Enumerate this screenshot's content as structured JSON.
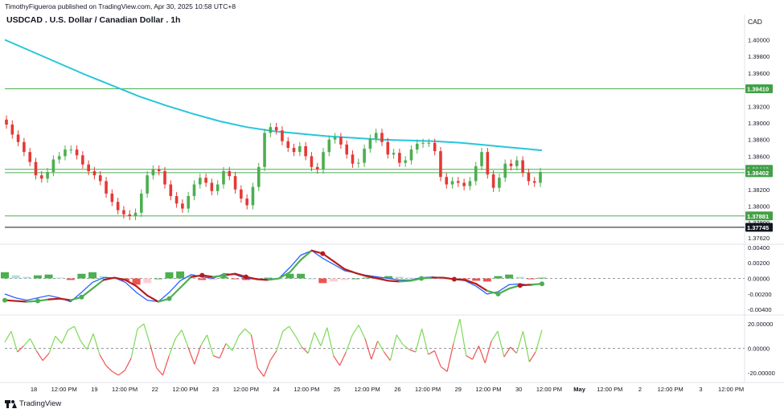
{
  "header": {
    "publisher_line": "TimothyFigueroa published on TradingView.com, Apr 30, 2025 10:58 UTC+8",
    "title": "USDCAD . U.S. Dollar / Canadian Dollar . 1h",
    "currency": "CAD"
  },
  "footer": {
    "brand": "TradingView"
  },
  "colors": {
    "up": "#26a69a",
    "down": "#ef5350",
    "candle_up": "#4caf50",
    "candle_down": "#e53935",
    "ma": "#26c6da",
    "hline": "#4caf50",
    "macd_line": "#2962ff",
    "signal_line": "#b71c1c",
    "signal_up": "#4caf50",
    "hist_pos": "#4caf50",
    "hist_pos_light": "#b2dfdb",
    "hist_neg": "#ef5350",
    "hist_neg_light": "#ffcdd2",
    "osc_up": "#7ed957",
    "osc_down": "#ef5350"
  },
  "chart_data": [
    {
      "name_text": "USDCAD . U.S. Dollar / Canadian Dollar . 1h",
      "type": "candlestick",
      "ylim": [
        1.3755,
        1.4015
      ],
      "y_ticks": [
        "1.40000",
        "1.39800",
        "1.39600",
        "1.39410",
        "1.39200",
        "1.39000",
        "1.38800",
        "1.38600",
        "1.38442",
        "1.38402",
        "1.38200",
        "1.38000",
        "1.37881",
        "1.37800",
        "1.37745",
        "1.37620"
      ],
      "price_labels": [
        {
          "value": 1.3941,
          "text": "1.39410",
          "kind": "green"
        },
        {
          "value": 1.38442,
          "text": "1.38442",
          "kind": "green"
        },
        {
          "value": 1.38402,
          "text": "1.38402",
          "kind": "green"
        },
        {
          "value": 1.37881,
          "text": "1.37881",
          "kind": "green"
        },
        {
          "value": 1.37745,
          "text": "1.37745",
          "kind": "black"
        }
      ],
      "horizontal_lines": [
        {
          "value": 1.3941,
          "color": "green"
        },
        {
          "value": 1.38442,
          "color": "green"
        },
        {
          "value": 1.38402,
          "color": "green"
        },
        {
          "value": 1.37881,
          "color": "green"
        },
        {
          "value": 1.37745,
          "color": "black"
        }
      ],
      "moving_average": [
        1.4,
        1.3986,
        1.3972,
        1.3958,
        1.3945,
        1.3932,
        1.3921,
        1.3911,
        1.3902,
        1.3895,
        1.389,
        1.3887,
        1.3884,
        1.3882,
        1.388,
        1.3879,
        1.3878,
        1.3876,
        1.3873,
        1.387,
        1.3867
      ],
      "close": [
        1.3898,
        1.3886,
        1.3877,
        1.3865,
        1.3853,
        1.3837,
        1.3833,
        1.3841,
        1.3856,
        1.386,
        1.3868,
        1.3868,
        1.3861,
        1.385,
        1.3842,
        1.3837,
        1.383,
        1.3815,
        1.3805,
        1.3795,
        1.379,
        1.3788,
        1.3792,
        1.3815,
        1.3837,
        1.3844,
        1.3842,
        1.3826,
        1.3812,
        1.3803,
        1.3797,
        1.3812,
        1.3826,
        1.3834,
        1.3828,
        1.3818,
        1.3826,
        1.3842,
        1.3836,
        1.382,
        1.3809,
        1.3801,
        1.3823,
        1.3847,
        1.3888,
        1.3895,
        1.3891,
        1.3878,
        1.387,
        1.3865,
        1.3872,
        1.386,
        1.3847,
        1.3844,
        1.3865,
        1.388,
        1.3883,
        1.3874,
        1.3862,
        1.3851,
        1.3852,
        1.3869,
        1.3881,
        1.3888,
        1.3877,
        1.3862,
        1.3864,
        1.3852,
        1.3855,
        1.3868,
        1.3875,
        1.3876,
        1.3876,
        1.3866,
        1.3835,
        1.3826,
        1.383,
        1.3828,
        1.3824,
        1.383,
        1.3848,
        1.3865,
        1.3838,
        1.3822,
        1.3834,
        1.3851,
        1.3848,
        1.3855,
        1.384,
        1.383,
        1.3828,
        1.3841
      ]
    },
    {
      "type": "line+histogram",
      "ylim": [
        -0.0045,
        0.0043
      ],
      "y_ticks": [
        "0.00400",
        "0.00200",
        "0.00000",
        "-0.00200",
        "-0.00400"
      ],
      "macd": [
        -0.002,
        -0.0025,
        -0.0028,
        -0.0025,
        -0.0022,
        -0.0025,
        -0.003,
        -0.0018,
        -0.0005,
        0.0001,
        0.0001,
        -0.0005,
        -0.0018,
        -0.0028,
        -0.003,
        -0.0018,
        -0.0003,
        0.0005,
        0.0002,
        0.0,
        0.0006,
        0.0005,
        0.0,
        -0.0001,
        -0.0001,
        0.0,
        0.0014,
        0.003,
        0.0036,
        0.0026,
        0.0018,
        0.001,
        0.0007,
        0.0004,
        0.0002,
        0.0,
        -0.0002,
        -0.0002,
        0.0001,
        0.0002,
        0.0001,
        -0.0001,
        -0.0003,
        -0.001,
        -0.002,
        -0.0017,
        -0.0008,
        -0.0007,
        -0.0009,
        -0.0006
      ],
      "signal": [
        -0.0028,
        -0.0029,
        -0.003,
        -0.0029,
        -0.0027,
        -0.0026,
        -0.0028,
        -0.0024,
        -0.0013,
        -0.0002,
        0.0001,
        -0.0002,
        -0.001,
        -0.0022,
        -0.003,
        -0.0026,
        -0.0012,
        0.0002,
        0.0004,
        0.0002,
        0.0004,
        0.0006,
        0.0002,
        -0.0001,
        -0.0002,
        0.0,
        0.0008,
        0.0024,
        0.0036,
        0.0032,
        0.0022,
        0.0012,
        0.0007,
        0.0003,
        0.0,
        -0.0003,
        -0.0004,
        -0.0003,
        0.0,
        0.0001,
        0.0001,
        -0.0001,
        -0.0002,
        -0.0007,
        -0.0016,
        -0.002,
        -0.0013,
        -0.0009,
        -0.0008,
        -0.0007
      ],
      "signal_up": [
        1,
        0,
        0,
        1,
        1,
        0,
        0,
        1,
        1,
        1,
        0,
        0,
        0,
        0,
        0,
        1,
        1,
        1,
        0,
        0,
        1,
        0,
        0,
        0,
        0,
        1,
        1,
        1,
        1,
        0,
        0,
        0,
        0,
        0,
        0,
        0,
        0,
        1,
        1,
        1,
        0,
        0,
        0,
        0,
        0,
        1,
        1,
        1,
        0,
        1
      ],
      "markers": [
        {
          "index": 0,
          "color": "green"
        },
        {
          "index": 3,
          "color": "green"
        },
        {
          "index": 7,
          "color": "green"
        },
        {
          "index": 15,
          "color": "green"
        },
        {
          "index": 18,
          "color": "red"
        },
        {
          "index": 20,
          "color": "green"
        },
        {
          "index": 22,
          "color": "red"
        },
        {
          "index": 29,
          "color": "red"
        },
        {
          "index": 38,
          "color": "green"
        },
        {
          "index": 41,
          "color": "red"
        },
        {
          "index": 45,
          "color": "green"
        },
        {
          "index": 47,
          "color": "red"
        },
        {
          "index": 49,
          "color": "green"
        }
      ]
    },
    {
      "type": "line",
      "ylim": [
        -24,
        26
      ],
      "y_ticks": [
        "20.00000",
        "0.00000",
        "-20.00000"
      ],
      "values": [
        5,
        14,
        -3,
        2,
        8,
        -2,
        -10,
        -4,
        10,
        4,
        15,
        18,
        6,
        -1,
        12,
        -5,
        -14,
        -19,
        -22,
        -18,
        -8,
        16,
        20,
        3,
        -16,
        -22,
        -6,
        8,
        15,
        1,
        -13,
        2,
        11,
        -6,
        -8,
        4,
        -2,
        10,
        16,
        11,
        -16,
        -23,
        -10,
        -2,
        14,
        18,
        10,
        1,
        -4,
        13,
        2,
        17,
        -6,
        -14,
        -3,
        11,
        19,
        8,
        -9,
        6,
        -3,
        -10,
        11,
        3,
        -1,
        -3,
        16,
        -5,
        -2,
        -15,
        -19,
        4,
        24,
        -6,
        -9,
        2,
        -12,
        6,
        14,
        -7,
        1,
        -4,
        14,
        -11,
        -3,
        15
      ]
    }
  ],
  "x_axis": {
    "ticks": [
      "18",
      "12:00 PM",
      "19",
      "12:00 PM",
      "22",
      "12:00 PM",
      "23",
      "12:00 PM",
      "24",
      "12:00 PM",
      "25",
      "12:00 PM",
      "26",
      "12:00 PM",
      "29",
      "12:00 PM",
      "30",
      "12:00 PM",
      "May",
      "12:00 PM",
      "2",
      "12:00 PM",
      "3",
      "12:00 PM"
    ],
    "bold_ticks": [
      "May"
    ]
  }
}
